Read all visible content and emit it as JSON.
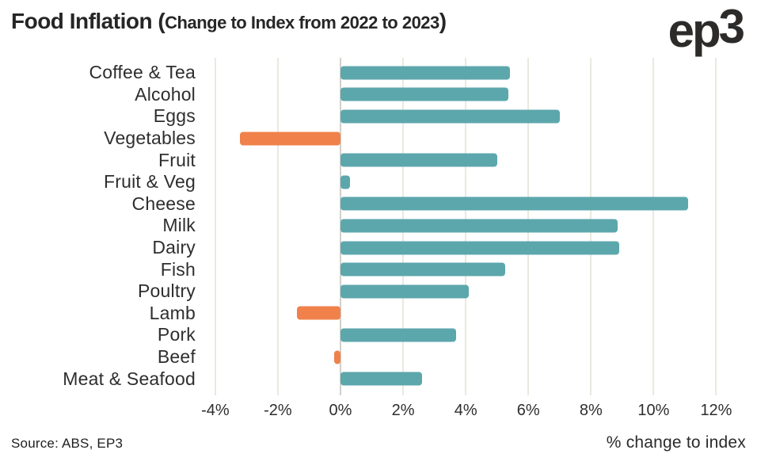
{
  "header": {
    "title_prefix": "Food Inflation (",
    "title_inner": "Change to Index from 2022 to 2023",
    "title_suffix": ")",
    "logo_ep": "ep",
    "logo_3": "3"
  },
  "chart_data": {
    "type": "bar",
    "orientation": "horizontal",
    "title": "Food Inflation (Change to Index from 2022 to 2023)",
    "xlabel": "% change to index",
    "ylabel": "",
    "categories": [
      "Coffee & Tea",
      "Alcohol",
      "Eggs",
      "Vegetables",
      "Fruit",
      "Fruit & Veg",
      "Cheese",
      "Milk",
      "Dairy",
      "Fish",
      "Poultry",
      "Lamb",
      "Pork",
      "Beef",
      "Meat & Seafood"
    ],
    "values": [
      5.4,
      5.35,
      7.0,
      -3.2,
      5.0,
      0.3,
      11.1,
      8.85,
      8.9,
      5.25,
      4.1,
      -1.4,
      3.7,
      -0.2,
      2.6
    ],
    "unit": "%",
    "x_tick_labels": [
      "-4%",
      "-2%",
      "0%",
      "2%",
      "4%",
      "6%",
      "8%",
      "10%",
      "12%"
    ],
    "x_tick_values": [
      -4,
      -2,
      0,
      2,
      4,
      6,
      8,
      10,
      12
    ],
    "xlim": [
      -4.3,
      13.0
    ],
    "grid": true,
    "legend": false,
    "positive_color": "#5CA7AC",
    "negative_color": "#F0814B",
    "grid_color": "#ebe8df",
    "zero_line_color": "#d2d0c9"
  },
  "footer": {
    "source": "Source: ABS, EP3",
    "axis_label": "% change to index"
  }
}
